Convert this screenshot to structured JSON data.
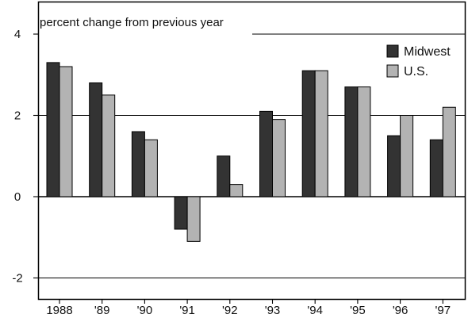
{
  "chart_data": {
    "type": "bar",
    "ylabel": "percent change from previous year",
    "categories": [
      "1988",
      "'89",
      "'90",
      "'91",
      "'92",
      "'93",
      "'94",
      "'95",
      "'96",
      "'97"
    ],
    "series": [
      {
        "name": "Midwest",
        "color": "#333333",
        "values": [
          3.3,
          2.8,
          1.6,
          -0.8,
          1.0,
          2.1,
          3.1,
          2.7,
          1.5,
          1.4
        ]
      },
      {
        "name": "U.S.",
        "color": "#b3b3b3",
        "values": [
          3.2,
          2.5,
          1.4,
          -1.1,
          0.3,
          1.9,
          3.1,
          2.7,
          2.0,
          2.2
        ]
      }
    ],
    "ylim": [
      -2.5,
      4
    ],
    "yticks": [
      {
        "value": 4,
        "label": "4"
      },
      {
        "value": 2,
        "label": "2"
      },
      {
        "value": 0,
        "label": "0"
      },
      {
        "value": -2,
        "label": "-2"
      }
    ],
    "grid": true,
    "legend": "top-right"
  }
}
